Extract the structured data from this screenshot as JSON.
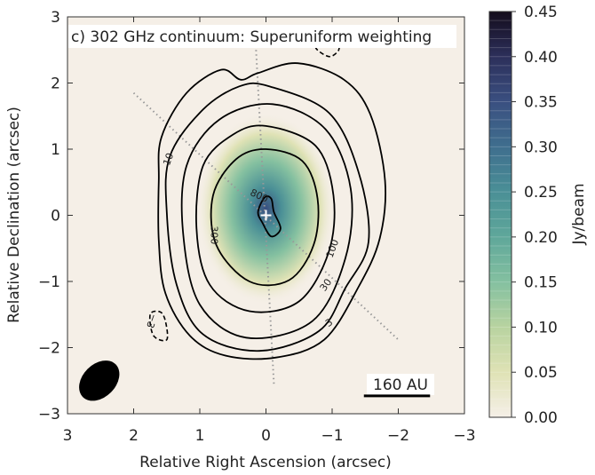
{
  "chart_data": {
    "type": "heatmap",
    "title": "c) 302 GHz continuum: Superuniform weighting",
    "xlabel": "Relative Right Ascension (arcsec)",
    "ylabel": "Relative Declination (arcsec)",
    "xlim": [
      3,
      -3
    ],
    "ylim": [
      -3,
      3
    ],
    "x_ticks": [
      3,
      2,
      1,
      0,
      -1,
      -2,
      -3
    ],
    "x_tick_labels": [
      "3",
      "2",
      "1",
      "0",
      "−1",
      "−2",
      "−3"
    ],
    "y_ticks": [
      3,
      2,
      1,
      0,
      -1,
      -2,
      -3
    ],
    "y_tick_labels": [
      "3",
      "2",
      "1",
      "0",
      "−1",
      "−2",
      "−3"
    ],
    "colorbar": {
      "label": "Jy/beam",
      "range": [
        0.0,
        0.45
      ],
      "ticks": [
        0.0,
        0.05,
        0.1,
        0.15,
        0.2,
        0.25,
        0.3,
        0.35,
        0.4,
        0.45
      ],
      "tick_labels": [
        "0.00",
        "0.05",
        "0.10",
        "0.15",
        "0.20",
        "0.25",
        "0.30",
        "0.35",
        "0.40",
        "0.45"
      ],
      "colors": [
        "#f5efe7",
        "#dfe2b5",
        "#b8d3a0",
        "#84c0a0",
        "#5fa79a",
        "#4a8f96",
        "#3f6e8e",
        "#3a4f80",
        "#2c2f5a",
        "#140c1c"
      ]
    },
    "peak_value_jy_per_beam": 0.36,
    "contour_levels_labeled": [
      "3",
      "10",
      "30",
      "100",
      "300",
      "800",
      "−3"
    ],
    "contours": [
      {
        "label": "800",
        "points": [
          [
            0.02,
            0.27
          ],
          [
            -0.08,
            0.25
          ],
          [
            -0.12,
            0.05
          ],
          [
            -0.22,
            -0.2
          ],
          [
            -0.08,
            -0.32
          ],
          [
            0.05,
            -0.12
          ],
          [
            0.12,
            0.05
          ]
        ]
      },
      {
        "label": "300",
        "points": [
          [
            0.0,
            1.0
          ],
          [
            -0.55,
            0.82
          ],
          [
            -0.78,
            0.25
          ],
          [
            -0.72,
            -0.45
          ],
          [
            -0.35,
            -0.98
          ],
          [
            0.25,
            -1.0
          ],
          [
            0.75,
            -0.45
          ],
          [
            0.8,
            0.3
          ],
          [
            0.45,
            0.85
          ]
        ]
      },
      {
        "label": "100",
        "points": [
          [
            0.0,
            1.35
          ],
          [
            -0.75,
            1.05
          ],
          [
            -1.02,
            0.3
          ],
          [
            -0.95,
            -0.55
          ],
          [
            -0.5,
            -1.3
          ],
          [
            0.25,
            -1.45
          ],
          [
            0.85,
            -1.05
          ],
          [
            1.05,
            -0.2
          ],
          [
            0.95,
            0.75
          ],
          [
            0.5,
            1.22
          ]
        ]
      },
      {
        "label": "30",
        "points": [
          [
            -0.1,
            1.68
          ],
          [
            -0.9,
            1.3
          ],
          [
            -1.28,
            0.4
          ],
          [
            -1.2,
            -0.65
          ],
          [
            -0.7,
            -1.6
          ],
          [
            0.3,
            -1.85
          ],
          [
            1.0,
            -1.35
          ],
          [
            1.25,
            -0.3
          ],
          [
            1.2,
            0.75
          ],
          [
            0.7,
            1.45
          ]
        ]
      },
      {
        "label": "10",
        "points": [
          [
            -0.05,
            1.95
          ],
          [
            -0.95,
            1.55
          ],
          [
            -1.4,
            0.65
          ],
          [
            -1.55,
            -0.4
          ],
          [
            -1.2,
            -1.1
          ],
          [
            -0.8,
            -1.75
          ],
          [
            0.1,
            -2.05
          ],
          [
            0.95,
            -1.8
          ],
          [
            1.35,
            -1.05
          ],
          [
            1.5,
            0.05
          ],
          [
            1.45,
            0.9
          ],
          [
            0.95,
            1.6
          ],
          [
            0.4,
            1.95
          ]
        ]
      },
      {
        "label": "3",
        "points": [
          [
            0.38,
            2.05
          ],
          [
            0.12,
            2.15
          ],
          [
            -0.48,
            2.3
          ],
          [
            -1.18,
            2.05
          ],
          [
            -1.58,
            1.52
          ],
          [
            -1.8,
            0.52
          ],
          [
            -1.72,
            -0.35
          ],
          [
            -1.4,
            -1.08
          ],
          [
            -0.88,
            -1.88
          ],
          [
            -0.15,
            -2.15
          ],
          [
            0.62,
            -2.12
          ],
          [
            1.15,
            -1.82
          ],
          [
            1.52,
            -1.18
          ],
          [
            1.62,
            -0.38
          ],
          [
            1.62,
            0.52
          ],
          [
            1.58,
            1.18
          ],
          [
            1.2,
            1.85
          ],
          [
            0.68,
            2.2
          ]
        ]
      }
    ],
    "negative_contours": [
      {
        "label": "−3",
        "points": [
          [
            1.75,
            -1.5
          ],
          [
            1.7,
            -1.82
          ],
          [
            1.5,
            -1.88
          ],
          [
            1.52,
            -1.6
          ],
          [
            1.6,
            -1.46
          ]
        ]
      },
      {
        "label": "",
        "points": [
          [
            -0.75,
            2.55
          ],
          [
            -0.95,
            2.4
          ],
          [
            -1.1,
            2.5
          ],
          [
            -1.05,
            2.62
          ]
        ]
      }
    ],
    "annotations": {
      "scale_bar_text": "160 AU",
      "scale_bar_length_arcsec": 1.0,
      "beam_ellipse": {
        "center": [
          2.52,
          -2.5
        ],
        "major_arcsec": 0.7,
        "minor_arcsec": 0.5,
        "pa_deg": 45
      },
      "source_marker": [
        0.0,
        0.0
      ]
    },
    "grid": false,
    "colorbar_placement": "right"
  }
}
